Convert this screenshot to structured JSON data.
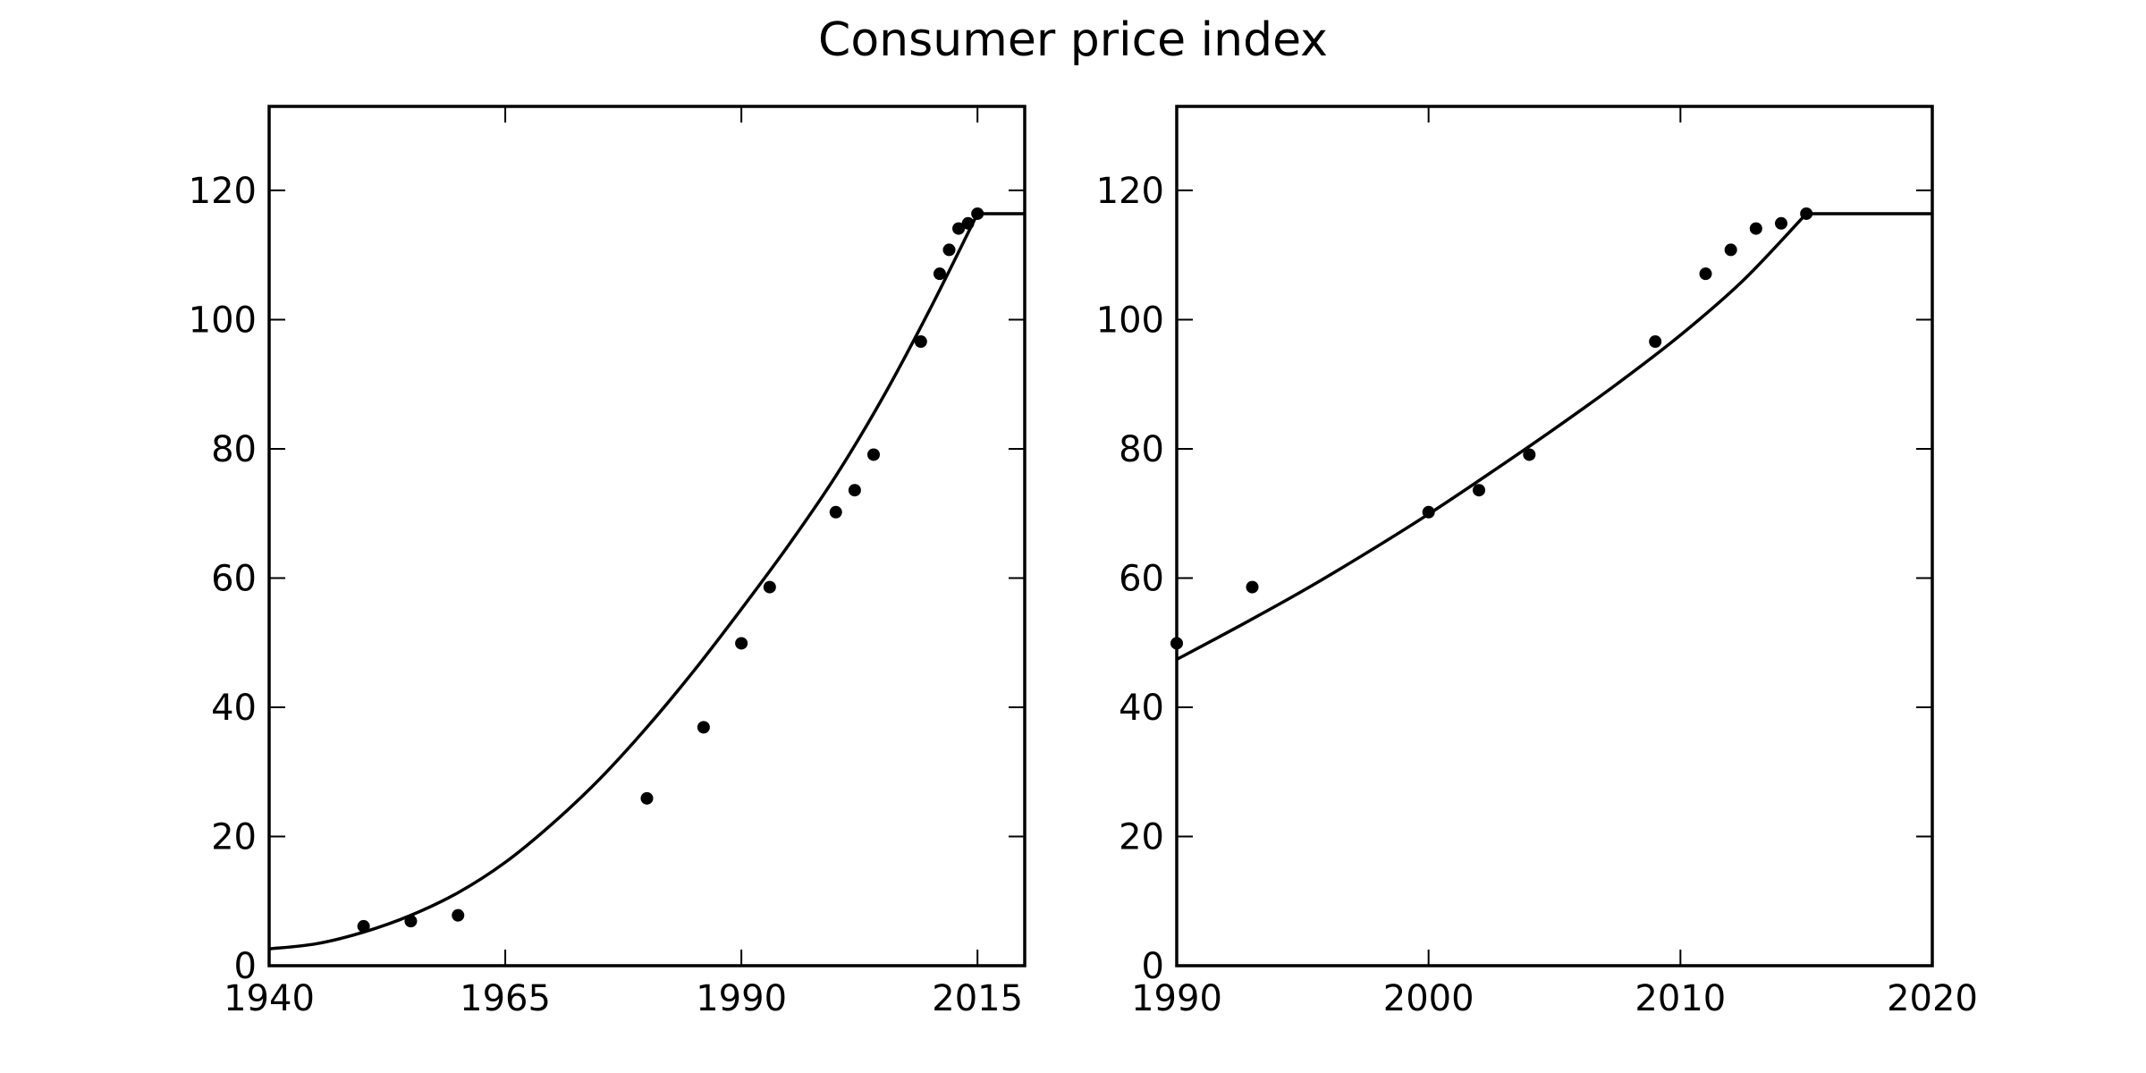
{
  "title": "Consumer price index",
  "chart_data": [
    {
      "type": "scatter",
      "title": "",
      "xlabel": "",
      "ylabel": "",
      "xlim": [
        1940,
        2020
      ],
      "ylim": [
        0,
        133
      ],
      "xticks": [
        1940,
        1965,
        1990,
        2015
      ],
      "yticks": [
        0,
        20,
        40,
        60,
        80,
        100,
        120
      ],
      "grid": false,
      "points": {
        "x": [
          1950,
          1955,
          1960,
          1980,
          1986,
          1990,
          1993,
          2000,
          2002,
          2004,
          2009,
          2011,
          2012,
          2013,
          2014,
          2015
        ],
        "y": [
          6.1,
          6.9,
          7.8,
          25.9,
          36.9,
          49.9,
          58.6,
          70.2,
          73.6,
          79.1,
          96.6,
          107.1,
          110.8,
          114.1,
          114.9,
          116.4
        ]
      },
      "fit_line": {
        "x": [
          1940,
          1945,
          1950,
          1955,
          1960,
          1965,
          1970,
          1975,
          1980,
          1985,
          1990,
          1995,
          2000,
          2005,
          2010,
          2015,
          2020
        ],
        "y": [
          2.6,
          3.4,
          5.2,
          7.8,
          11.3,
          16.0,
          22.0,
          28.9,
          36.9,
          45.7,
          55.2,
          65.1,
          75.8,
          88.0,
          101.7,
          116.4,
          116.4
        ]
      }
    },
    {
      "type": "scatter",
      "title": "",
      "xlabel": "",
      "ylabel": "",
      "xlim": [
        1990,
        2020
      ],
      "ylim": [
        0,
        133
      ],
      "xticks": [
        1990,
        2000,
        2010,
        2020
      ],
      "yticks": [
        0,
        20,
        40,
        60,
        80,
        100,
        120
      ],
      "grid": false,
      "points": {
        "x": [
          1990,
          1993,
          2000,
          2002,
          2004,
          2009,
          2011,
          2012,
          2013,
          2014,
          2015
        ],
        "y": [
          49.9,
          58.6,
          70.2,
          73.6,
          79.1,
          96.6,
          107.1,
          110.8,
          114.1,
          114.9,
          116.4
        ]
      },
      "fit_line": {
        "x": [
          1990,
          1992.5,
          1995,
          1997.5,
          2000,
          2002.5,
          2005,
          2007.5,
          2010,
          2012.5,
          2015,
          2020
        ],
        "y": [
          47.4,
          52.6,
          58.0,
          63.8,
          69.9,
          76.4,
          83.1,
          90.1,
          97.6,
          106.1,
          116.4,
          116.4
        ]
      }
    }
  ]
}
